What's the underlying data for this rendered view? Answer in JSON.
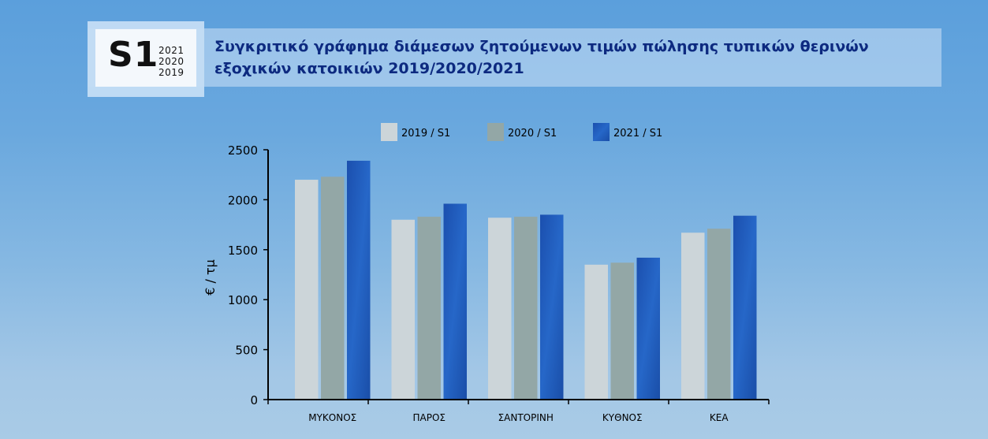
{
  "header": {
    "badge_code": "S1",
    "badge_years": [
      "2021",
      "2020",
      "2019"
    ],
    "title": "Συγκριτικό γράφημα διάμεσων ζητούμενων τιμών πώλησης τυπικών θερινών εξοχικών κατοικιών 2019/2020/2021"
  },
  "chart_data": {
    "type": "bar",
    "title": "",
    "xlabel": "",
    "ylabel": "€ / τμ",
    "ylim": [
      0,
      2500
    ],
    "yticks": [
      0,
      500,
      1000,
      1500,
      2000,
      2500
    ],
    "grid": false,
    "legend_position": "top",
    "categories": [
      "ΜΥΚΟΝΟΣ",
      "ΠΑΡΟΣ",
      "ΣΑΝΤΟΡΙΝΗ",
      "ΚΥΘΝΟΣ",
      "ΚΕΑ"
    ],
    "series": [
      {
        "name": "2019 / S1",
        "color": "#ccd5d9",
        "values": [
          2200,
          1800,
          1820,
          1350,
          1670
        ]
      },
      {
        "name": "2020 / S1",
        "color": "#93a7a6",
        "values": [
          2230,
          1830,
          1830,
          1370,
          1710
        ]
      },
      {
        "name": "2021 / S1",
        "color": "#1c58b8",
        "values": [
          2390,
          1960,
          1850,
          1420,
          1840
        ]
      }
    ]
  }
}
